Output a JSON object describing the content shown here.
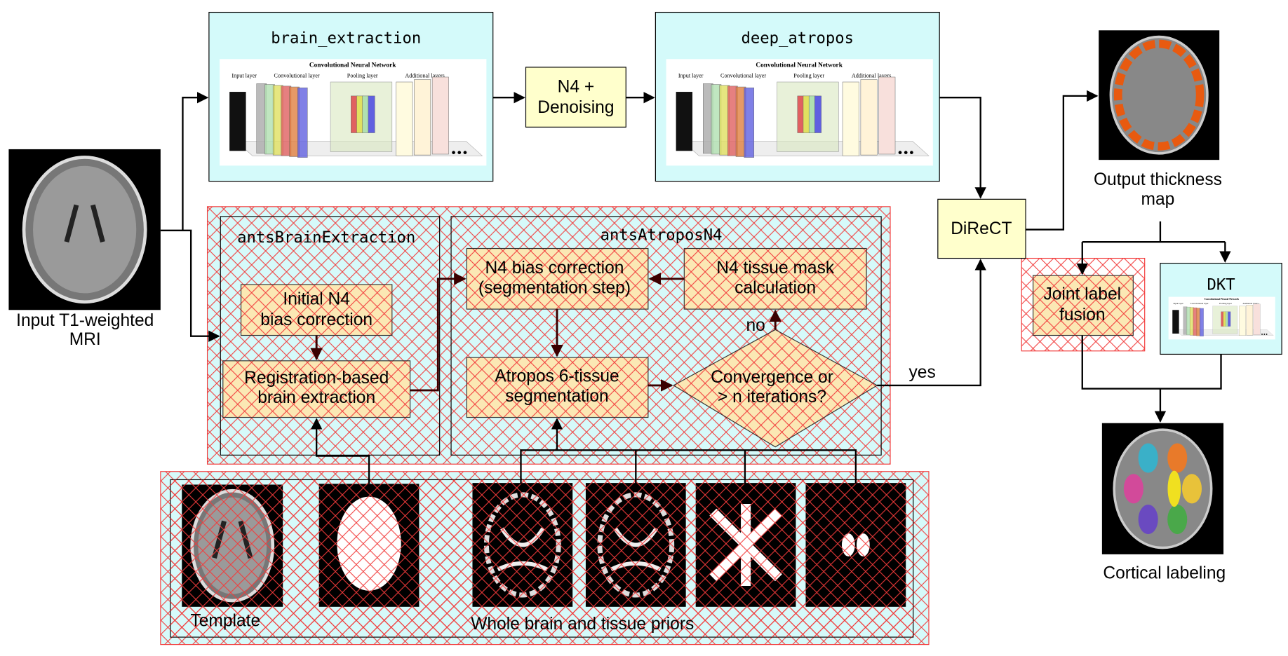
{
  "input": {
    "label": [
      "Input T1-weighted",
      "MRI"
    ]
  },
  "brain_extraction": {
    "title": "brain_extraction"
  },
  "n4_denoising": {
    "label": [
      "N4 +",
      "Denoising"
    ]
  },
  "deep_atropos": {
    "title": "deep_atropos"
  },
  "direct": {
    "label": "DiReCT"
  },
  "output": {
    "label": [
      "Output thickness",
      "map"
    ]
  },
  "ants_brain_extraction": {
    "title": "antsBrainExtraction",
    "steps": [
      [
        "Initial N4",
        "bias correction"
      ],
      [
        "Registration-based",
        "brain extraction"
      ]
    ]
  },
  "ants_atropos_n4": {
    "title": "antsAtroposN4",
    "steps": [
      [
        "N4 bias correction",
        "(segmentation step)"
      ],
      [
        "N4 tissue mask",
        "calculation"
      ],
      [
        "Atropos 6-tissue",
        "segmentation"
      ]
    ],
    "decision": [
      "Convergence or",
      "> n iterations?"
    ],
    "no": "no"
  },
  "yes": "yes",
  "joint_label_fusion": [
    "Joint label",
    "fusion"
  ],
  "dkt": {
    "title": "DKT"
  },
  "cortical_labeling": "Cortical labeling",
  "priors": {
    "template": "Template",
    "caption": "Whole brain and tissue priors"
  },
  "cnn_figure": {
    "title": "Convolutional Neural Network",
    "layers": [
      "Input layer",
      "Convolutional layer",
      "Pooling layer",
      "Additional layers"
    ]
  }
}
